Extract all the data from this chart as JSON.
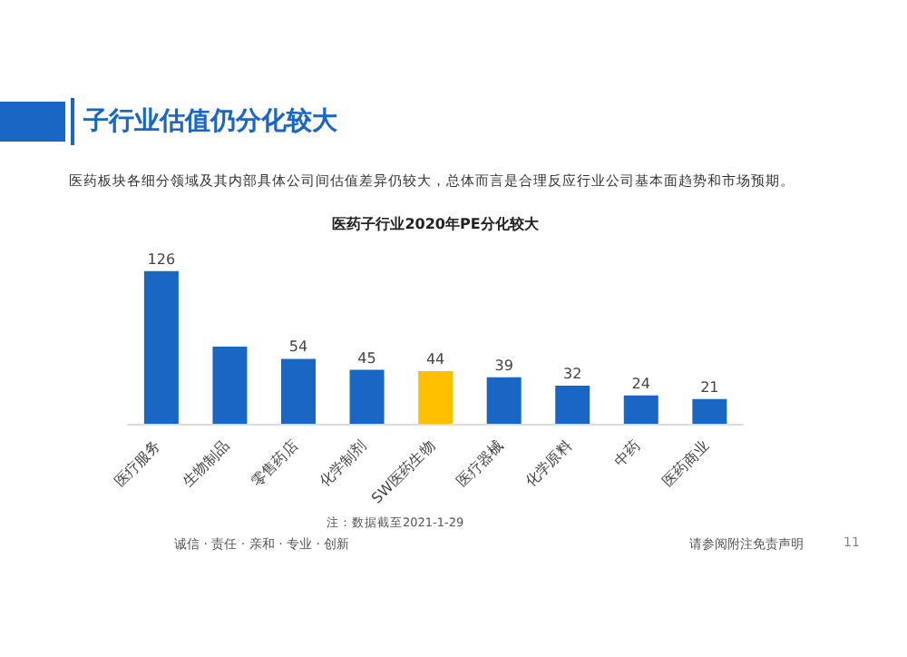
{
  "chart_data": {
    "type": "bar",
    "title": "医药子行业2020年PE分化较大",
    "categories": [
      "医疗服务",
      "生物制品",
      "零售药店",
      "化学制剂",
      "SW医药生物",
      "医疗器械",
      "化学原料",
      "中药",
      "医药商业"
    ],
    "values": [
      126,
      64,
      54,
      45,
      44,
      39,
      32,
      24,
      21
    ],
    "colors": [
      "#1a66c4",
      "#1a66c4",
      "#1a66c4",
      "#1a66c4",
      "#ffc000",
      "#1a66c4",
      "#1a66c4",
      "#1a66c4",
      "#1a66c4"
    ],
    "value_labels": [
      "126",
      null,
      "54",
      "45",
      "44",
      "39",
      "32",
      "24",
      "21"
    ],
    "annotations": [
      "子行业估值仍分化较大",
      "医药板块各细分领域及其内部具体公司间估值差异仍较大，总体而言是合理反应行业公司基本面趋势和市场预期。",
      "注：数据截至2021-1-29",
      "诚信 · 责任 · 亲和 · 专业 · 创新",
      "请参阅附注免责声明",
      "11"
    ]
  }
}
